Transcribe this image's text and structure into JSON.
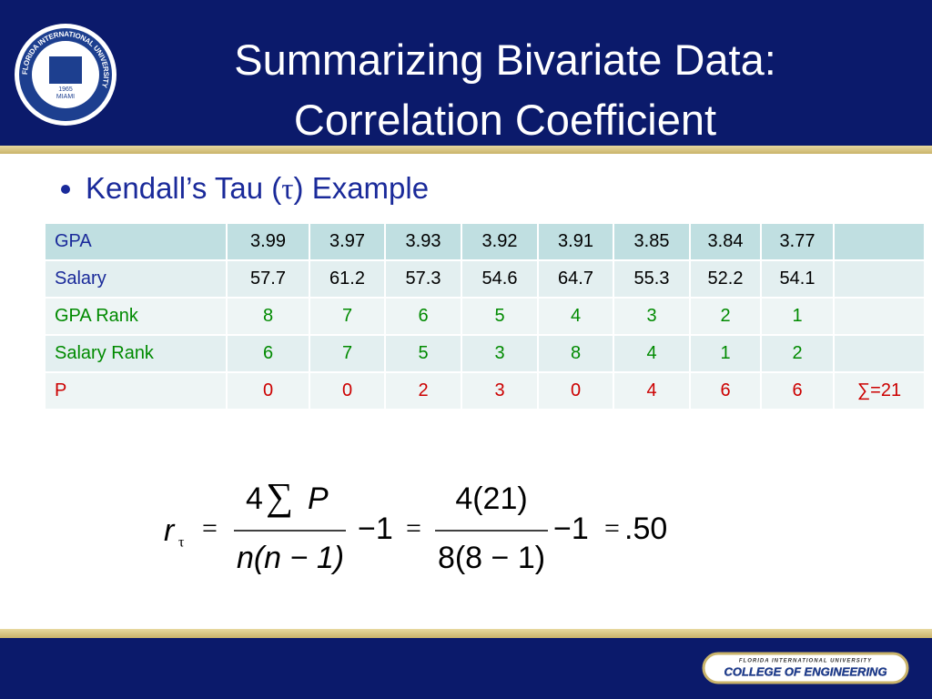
{
  "header": {
    "title_lines": [
      "Summarizing Bivariate Data:",
      "Correlation Coefficient"
    ],
    "seal": {
      "ring_text": "FLORIDA INTERNATIONAL UNIVERSITY",
      "city": "MIAMI",
      "year": "1965"
    }
  },
  "bullet": {
    "text_before": "Kendall’s Tau (",
    "symbol": "τ",
    "text_after": ") Example"
  },
  "table": {
    "rows": [
      {
        "label": "GPA",
        "cells": [
          "3.99",
          "3.97",
          "3.93",
          "3.92",
          "3.91",
          "3.85",
          "3.84",
          "3.77"
        ]
      },
      {
        "label": "Salary",
        "cells": [
          "57.7",
          "61.2",
          "57.3",
          "54.6",
          "64.7",
          "55.3",
          "52.2",
          "54.1"
        ]
      },
      {
        "label": "GPA Rank",
        "cells": [
          "8",
          "7",
          "6",
          "5",
          "4",
          "3",
          "2",
          "1"
        ]
      },
      {
        "label": "Salary Rank",
        "cells": [
          "6",
          "7",
          "5",
          "3",
          "8",
          "4",
          "1",
          "2"
        ]
      },
      {
        "label": "P",
        "cells": [
          "0",
          "0",
          "2",
          "3",
          "0",
          "4",
          "6",
          "6"
        ],
        "sum": "∑=21"
      }
    ]
  },
  "formula": {
    "lhs": "r",
    "lhs_sub": "τ",
    "eq1": "=",
    "frac1_coef": "4",
    "frac1_sigma": "∑",
    "frac1_var": "P",
    "frac1_den": "n(n − 1)",
    "minus1": "−1",
    "eq2": "=",
    "frac2_num": "4(21)",
    "frac2_den": "8(8 − 1)",
    "minus2": "−1",
    "eq3": "=",
    "result": ".50"
  },
  "footer": {
    "university": "FLORIDA INTERNATIONAL UNIVERSITY",
    "college": "COLLEGE OF ENGINEERING"
  }
}
